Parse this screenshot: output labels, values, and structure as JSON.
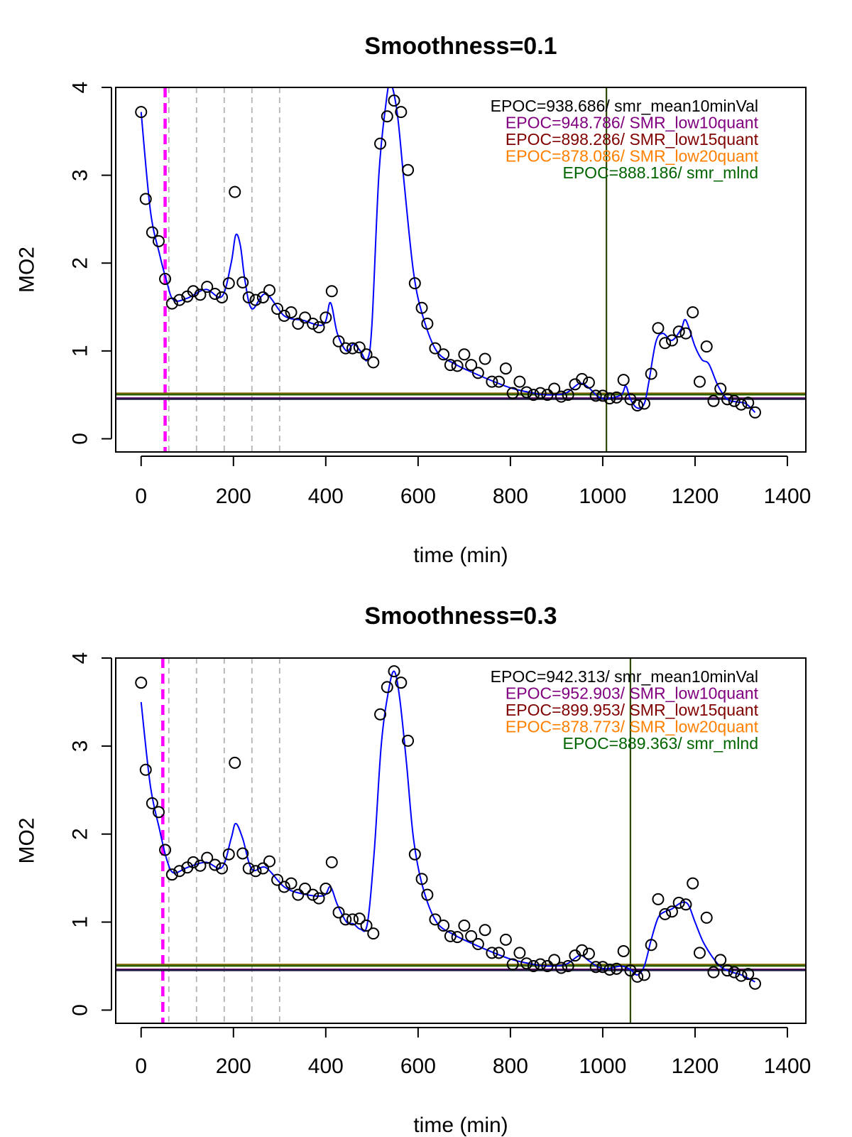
{
  "chart_data": [
    {
      "type": "scatter",
      "title": "Smoothness=0.1",
      "xlabel": "time (min)",
      "ylabel": "MO2",
      "xlim": [
        -55,
        1440
      ],
      "ylim": [
        -0.15,
        4.0
      ],
      "xticks": [
        0,
        200,
        400,
        600,
        800,
        1000,
        1200,
        1400
      ],
      "yticks": [
        0,
        1,
        2,
        3,
        4
      ],
      "x_tick_labels": [
        "0",
        "200",
        "400",
        "600",
        "800",
        "1000",
        "1200",
        "1400"
      ],
      "y_tick_labels": [
        "0",
        "1",
        "2",
        "3",
        "4"
      ],
      "points": {
        "x": [
          0,
          10,
          24,
          38,
          52,
          67,
          83,
          100,
          113,
          128,
          143,
          160,
          175,
          190,
          203,
          220,
          233,
          248,
          264,
          278,
          295,
          310,
          325,
          340,
          355,
          372,
          385,
          400,
          413,
          428,
          443,
          458,
          473,
          488,
          503,
          518,
          533,
          548,
          563,
          578,
          593,
          608,
          620,
          637,
          655,
          670,
          685,
          700,
          715,
          730,
          745,
          760,
          775,
          790,
          805,
          820,
          835,
          850,
          865,
          880,
          895,
          910,
          925,
          940,
          955,
          970,
          985,
          1000,
          1015,
          1030,
          1045,
          1060,
          1075,
          1090,
          1105,
          1120,
          1135,
          1150,
          1165,
          1180,
          1195,
          1210,
          1225,
          1240,
          1255,
          1270,
          1285,
          1300,
          1315,
          1330
        ],
        "y": [
          3.72,
          2.73,
          2.35,
          2.25,
          1.82,
          1.54,
          1.58,
          1.62,
          1.68,
          1.64,
          1.73,
          1.65,
          1.61,
          1.77,
          2.81,
          1.78,
          1.61,
          1.58,
          1.61,
          1.69,
          1.48,
          1.4,
          1.44,
          1.31,
          1.38,
          1.31,
          1.27,
          1.38,
          1.68,
          1.11,
          1.03,
          1.03,
          1.04,
          0.96,
          0.87,
          3.36,
          3.67,
          3.85,
          3.72,
          3.06,
          1.77,
          1.49,
          1.31,
          1.03,
          0.96,
          0.84,
          0.83,
          0.96,
          0.84,
          0.75,
          0.91,
          0.65,
          0.65,
          0.8,
          0.52,
          0.65,
          0.53,
          0.5,
          0.52,
          0.5,
          0.57,
          0.48,
          0.5,
          0.62,
          0.68,
          0.64,
          0.49,
          0.49,
          0.46,
          0.47,
          0.67,
          0.45,
          0.38,
          0.4,
          0.74,
          1.26,
          1.09,
          1.12,
          1.22,
          1.2,
          1.44,
          0.65,
          1.05,
          0.43,
          0.57,
          0.45,
          0.43,
          0.39,
          0.41,
          0.3
        ]
      },
      "smooth_curve": {
        "x": [
          0,
          20,
          40,
          55,
          70,
          100,
          140,
          175,
          195,
          205,
          215,
          225,
          240,
          270,
          310,
          350,
          395,
          410,
          425,
          445,
          460,
          475,
          490,
          500,
          515,
          530,
          540,
          555,
          570,
          590,
          610,
          640,
          680,
          720,
          760,
          800,
          840,
          880,
          920,
          950,
          970,
          990,
          1010,
          1040,
          1050,
          1060,
          1075,
          1090,
          1100,
          1115,
          1130,
          1150,
          1170,
          1180,
          1200,
          1215,
          1230,
          1250,
          1270,
          1290,
          1310,
          1330
        ],
        "y": [
          3.72,
          2.6,
          2.1,
          1.8,
          1.58,
          1.6,
          1.7,
          1.62,
          2.0,
          2.32,
          2.2,
          1.8,
          1.48,
          1.65,
          1.4,
          1.35,
          1.3,
          1.55,
          1.2,
          1.0,
          1.08,
          1.0,
          0.9,
          1.3,
          3.0,
          3.8,
          4.05,
          3.7,
          2.9,
          1.9,
          1.4,
          1.0,
          0.85,
          0.75,
          0.66,
          0.58,
          0.53,
          0.5,
          0.52,
          0.63,
          0.58,
          0.48,
          0.46,
          0.5,
          0.6,
          0.45,
          0.35,
          0.4,
          0.65,
          1.1,
          1.2,
          1.12,
          1.25,
          1.35,
          1.05,
          0.9,
          0.85,
          0.6,
          0.45,
          0.42,
          0.4,
          0.3
        ]
      },
      "vlines": [
        {
          "x": 52,
          "color": "#ff00ff",
          "style": "dashed-thick"
        },
        {
          "x": 60,
          "color": "#b3b3b3",
          "style": "dashed"
        },
        {
          "x": 120,
          "color": "#b3b3b3",
          "style": "dashed"
        },
        {
          "x": 180,
          "color": "#b3b3b3",
          "style": "dashed"
        },
        {
          "x": 240,
          "color": "#b3b3b3",
          "style": "dashed"
        },
        {
          "x": 300,
          "color": "#b3b3b3",
          "style": "dashed"
        },
        {
          "x": 1008,
          "color": "#2d4a00",
          "style": "solid"
        }
      ],
      "hlines": [
        {
          "y": 0.517,
          "color": "#806600"
        },
        {
          "y": 0.503,
          "color": "#2d6000"
        },
        {
          "y": 0.462,
          "color": "#660066"
        },
        {
          "y": 0.452,
          "color": "#1a1a40"
        }
      ],
      "annotations": [
        {
          "text": "EPOC=938.686/ smr_mean10minVal",
          "color": "#000000"
        },
        {
          "text": "EPOC=948.786/ SMR_low10quant",
          "color": "#800080"
        },
        {
          "text": "EPOC=898.286/ SMR_low15quant",
          "color": "#800000"
        },
        {
          "text": "EPOC=878.086/ SMR_low20quant",
          "color": "#ff8000"
        },
        {
          "text": "EPOC=888.186/ smr_mlnd",
          "color": "#006400"
        }
      ]
    },
    {
      "type": "scatter",
      "title": "Smoothness=0.3",
      "xlabel": "time (min)",
      "ylabel": "MO2",
      "xlim": [
        -55,
        1440
      ],
      "ylim": [
        -0.15,
        4.0
      ],
      "xticks": [
        0,
        200,
        400,
        600,
        800,
        1000,
        1200,
        1400
      ],
      "yticks": [
        0,
        1,
        2,
        3,
        4
      ],
      "x_tick_labels": [
        "0",
        "200",
        "400",
        "600",
        "800",
        "1000",
        "1200",
        "1400"
      ],
      "y_tick_labels": [
        "0",
        "1",
        "2",
        "3",
        "4"
      ],
      "points": {
        "x": [
          0,
          10,
          24,
          38,
          52,
          67,
          83,
          100,
          113,
          128,
          143,
          160,
          175,
          190,
          203,
          220,
          233,
          248,
          264,
          278,
          295,
          310,
          325,
          340,
          355,
          372,
          385,
          400,
          413,
          428,
          443,
          458,
          473,
          488,
          503,
          518,
          533,
          548,
          563,
          578,
          593,
          608,
          620,
          637,
          655,
          670,
          685,
          700,
          715,
          730,
          745,
          760,
          775,
          790,
          805,
          820,
          835,
          850,
          865,
          880,
          895,
          910,
          925,
          940,
          955,
          970,
          985,
          1000,
          1015,
          1030,
          1045,
          1060,
          1075,
          1090,
          1105,
          1120,
          1135,
          1150,
          1165,
          1180,
          1195,
          1210,
          1225,
          1240,
          1255,
          1270,
          1285,
          1300,
          1315,
          1330
        ],
        "y": [
          3.72,
          2.73,
          2.35,
          2.25,
          1.82,
          1.54,
          1.58,
          1.62,
          1.68,
          1.64,
          1.73,
          1.65,
          1.61,
          1.77,
          2.81,
          1.78,
          1.61,
          1.58,
          1.61,
          1.69,
          1.48,
          1.4,
          1.44,
          1.31,
          1.38,
          1.31,
          1.27,
          1.38,
          1.68,
          1.11,
          1.03,
          1.03,
          1.04,
          0.96,
          0.87,
          3.36,
          3.67,
          3.85,
          3.72,
          3.06,
          1.77,
          1.49,
          1.31,
          1.03,
          0.96,
          0.84,
          0.83,
          0.96,
          0.84,
          0.75,
          0.91,
          0.65,
          0.65,
          0.8,
          0.52,
          0.65,
          0.53,
          0.5,
          0.52,
          0.5,
          0.57,
          0.48,
          0.5,
          0.62,
          0.68,
          0.64,
          0.49,
          0.49,
          0.46,
          0.47,
          0.67,
          0.45,
          0.38,
          0.4,
          0.74,
          1.26,
          1.09,
          1.12,
          1.22,
          1.2,
          1.44,
          0.65,
          1.05,
          0.43,
          0.57,
          0.45,
          0.43,
          0.39,
          0.41,
          0.3
        ]
      },
      "smooth_curve": {
        "x": [
          0,
          20,
          40,
          55,
          70,
          100,
          140,
          175,
          195,
          205,
          220,
          240,
          270,
          310,
          350,
          395,
          410,
          425,
          445,
          460,
          475,
          490,
          505,
          520,
          535,
          548,
          560,
          575,
          590,
          610,
          640,
          680,
          720,
          760,
          800,
          840,
          880,
          920,
          950,
          970,
          990,
          1010,
          1040,
          1060,
          1075,
          1090,
          1105,
          1120,
          1135,
          1150,
          1170,
          1185,
          1200,
          1220,
          1250,
          1275,
          1300,
          1330
        ],
        "y": [
          3.5,
          2.55,
          2.05,
          1.72,
          1.56,
          1.62,
          1.68,
          1.62,
          1.95,
          2.12,
          1.95,
          1.6,
          1.62,
          1.4,
          1.32,
          1.3,
          1.4,
          1.2,
          1.0,
          0.98,
          0.92,
          0.98,
          1.8,
          3.0,
          3.6,
          3.85,
          3.55,
          2.8,
          1.95,
          1.4,
          1.0,
          0.85,
          0.75,
          0.66,
          0.58,
          0.53,
          0.5,
          0.52,
          0.62,
          0.56,
          0.49,
          0.47,
          0.5,
          0.46,
          0.4,
          0.5,
          0.8,
          1.05,
          1.12,
          1.15,
          1.22,
          1.2,
          1.0,
          0.75,
          0.52,
          0.44,
          0.4,
          0.32
        ]
      },
      "vlines": [
        {
          "x": 47,
          "color": "#ff00ff",
          "style": "dashed-thick"
        },
        {
          "x": 60,
          "color": "#b3b3b3",
          "style": "dashed"
        },
        {
          "x": 120,
          "color": "#b3b3b3",
          "style": "dashed"
        },
        {
          "x": 180,
          "color": "#b3b3b3",
          "style": "dashed"
        },
        {
          "x": 240,
          "color": "#b3b3b3",
          "style": "dashed"
        },
        {
          "x": 300,
          "color": "#b3b3b3",
          "style": "dashed"
        },
        {
          "x": 1060,
          "color": "#2d4a00",
          "style": "solid"
        }
      ],
      "hlines": [
        {
          "y": 0.517,
          "color": "#806600"
        },
        {
          "y": 0.503,
          "color": "#2d6000"
        },
        {
          "y": 0.462,
          "color": "#660066"
        },
        {
          "y": 0.452,
          "color": "#1a1a40"
        }
      ],
      "annotations": [
        {
          "text": "EPOC=942.313/ smr_mean10minVal",
          "color": "#000000"
        },
        {
          "text": "EPOC=952.903/ SMR_low10quant",
          "color": "#800080"
        },
        {
          "text": "EPOC=899.953/ SMR_low15quant",
          "color": "#800000"
        },
        {
          "text": "EPOC=878.773/ SMR_low20quant",
          "color": "#ff8000"
        },
        {
          "text": "EPOC=889.363/ smr_mlnd",
          "color": "#006400"
        }
      ]
    }
  ]
}
